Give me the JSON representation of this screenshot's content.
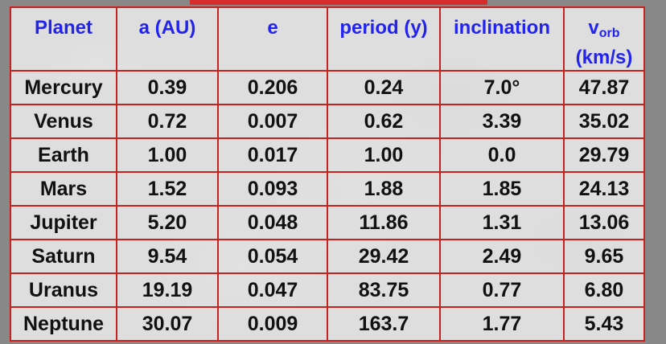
{
  "table": {
    "headers": [
      {
        "text": "Planet"
      },
      {
        "text": "a (AU)"
      },
      {
        "text": "e"
      },
      {
        "text": "period (y)"
      },
      {
        "text": "inclination"
      },
      {
        "text": "v",
        "sub": "orb",
        "line2": "(km/s)"
      }
    ],
    "rows": [
      [
        "Mercury",
        "0.39",
        "0.206",
        "0.24",
        "7.0°",
        "47.87"
      ],
      [
        "Venus",
        "0.72",
        "0.007",
        "0.62",
        "3.39",
        "35.02"
      ],
      [
        "Earth",
        "1.00",
        "0.017",
        "1.00",
        "0.0",
        "29.79"
      ],
      [
        "Mars",
        "1.52",
        "0.093",
        "1.88",
        "1.85",
        "24.13"
      ],
      [
        "Jupiter",
        "5.20",
        "0.048",
        "11.86",
        "1.31",
        "13.06"
      ],
      [
        "Saturn",
        "9.54",
        "0.054",
        "29.42",
        "2.49",
        "9.65"
      ],
      [
        "Uranus",
        "19.19",
        "0.047",
        "83.75",
        "0.77",
        "6.80"
      ],
      [
        "Neptune",
        "30.07",
        "0.009",
        "163.7",
        "1.77",
        "5.43"
      ]
    ]
  },
  "colors": {
    "header_text": "#2323ee",
    "cell_text": "#111111",
    "border": "#c8221e",
    "title_strip": "#e51d1d"
  }
}
